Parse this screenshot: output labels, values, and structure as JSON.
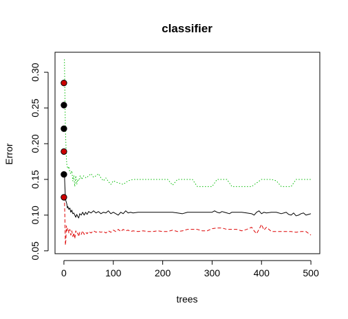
{
  "chart_data": {
    "type": "line",
    "title": "classifier",
    "xlabel": "trees",
    "ylabel": "Error",
    "xlim": [
      -18,
      518
    ],
    "ylim": [
      0.046,
      0.328
    ],
    "xticks": [
      0,
      100,
      200,
      300,
      400,
      500
    ],
    "yticks": [
      0.05,
      0.1,
      0.15,
      0.2,
      0.25,
      0.3
    ],
    "xtick_labels": [
      "0",
      "100",
      "200",
      "300",
      "400",
      "500"
    ],
    "ytick_labels": [
      "0.05",
      "0.10",
      "0.15",
      "0.20",
      "0.25",
      "0.30"
    ],
    "grid": false,
    "legend": "none",
    "series": [
      {
        "color": "#000000",
        "style": "solid",
        "x": [
          1,
          2,
          3,
          4,
          5,
          6,
          7,
          8,
          10,
          12,
          14,
          16,
          18,
          20,
          22,
          24,
          26,
          28,
          30,
          32,
          35,
          38,
          41,
          44,
          47,
          50,
          55,
          60,
          65,
          70,
          75,
          80,
          85,
          90,
          95,
          100,
          105,
          110,
          115,
          120,
          125,
          130,
          135,
          140,
          150,
          160,
          170,
          180,
          190,
          200,
          210,
          220,
          230,
          240,
          250,
          260,
          270,
          280,
          290,
          300,
          305,
          310,
          315,
          320,
          325,
          330,
          335,
          340,
          350,
          360,
          370,
          380,
          385,
          390,
          395,
          400,
          405,
          410,
          420,
          430,
          440,
          450,
          455,
          460,
          465,
          470,
          475,
          480,
          485,
          490,
          495,
          500
        ],
        "y": [
          0.158,
          0.14,
          0.125,
          0.12,
          0.118,
          0.115,
          0.11,
          0.112,
          0.108,
          0.11,
          0.104,
          0.107,
          0.102,
          0.103,
          0.1,
          0.097,
          0.101,
          0.098,
          0.096,
          0.102,
          0.1,
          0.104,
          0.1,
          0.104,
          0.101,
          0.105,
          0.103,
          0.106,
          0.103,
          0.105,
          0.102,
          0.104,
          0.103,
          0.106,
          0.102,
          0.104,
          0.102,
          0.1,
          0.104,
          0.102,
          0.106,
          0.103,
          0.104,
          0.103,
          0.104,
          0.104,
          0.104,
          0.104,
          0.104,
          0.104,
          0.104,
          0.104,
          0.103,
          0.102,
          0.104,
          0.104,
          0.104,
          0.104,
          0.104,
          0.104,
          0.106,
          0.104,
          0.103,
          0.105,
          0.104,
          0.103,
          0.102,
          0.104,
          0.104,
          0.104,
          0.103,
          0.102,
          0.1,
          0.104,
          0.106,
          0.102,
          0.104,
          0.103,
          0.104,
          0.104,
          0.102,
          0.104,
          0.101,
          0.1,
          0.103,
          0.099,
          0.1,
          0.102,
          0.103,
          0.1,
          0.101,
          0.102
        ]
      },
      {
        "color": "#dd0000",
        "style": "dashed",
        "x": [
          1,
          2,
          3,
          4,
          5,
          6,
          8,
          10,
          12,
          14,
          16,
          18,
          20,
          22,
          24,
          26,
          28,
          30,
          32,
          35,
          38,
          41,
          44,
          47,
          50,
          55,
          60,
          65,
          70,
          75,
          80,
          85,
          90,
          95,
          100,
          105,
          110,
          115,
          120,
          125,
          130,
          135,
          140,
          150,
          160,
          170,
          180,
          190,
          200,
          210,
          220,
          230,
          240,
          250,
          260,
          270,
          280,
          290,
          300,
          310,
          320,
          330,
          340,
          350,
          360,
          370,
          380,
          385,
          390,
          395,
          400,
          405,
          410,
          420,
          430,
          440,
          450,
          460,
          470,
          480,
          490,
          500
        ],
        "y": [
          0.125,
          0.095,
          0.058,
          0.065,
          0.085,
          0.078,
          0.082,
          0.075,
          0.08,
          0.072,
          0.078,
          0.07,
          0.075,
          0.067,
          0.078,
          0.074,
          0.075,
          0.07,
          0.076,
          0.073,
          0.078,
          0.073,
          0.076,
          0.074,
          0.077,
          0.075,
          0.078,
          0.076,
          0.077,
          0.076,
          0.077,
          0.075,
          0.078,
          0.076,
          0.079,
          0.077,
          0.08,
          0.077,
          0.08,
          0.078,
          0.079,
          0.077,
          0.078,
          0.077,
          0.078,
          0.077,
          0.077,
          0.078,
          0.077,
          0.077,
          0.079,
          0.077,
          0.078,
          0.08,
          0.08,
          0.08,
          0.078,
          0.078,
          0.081,
          0.082,
          0.082,
          0.08,
          0.08,
          0.08,
          0.078,
          0.08,
          0.083,
          0.078,
          0.074,
          0.08,
          0.087,
          0.079,
          0.083,
          0.077,
          0.077,
          0.077,
          0.077,
          0.077,
          0.076,
          0.077,
          0.077,
          0.072
        ]
      },
      {
        "color": "#00bb00",
        "style": "dotted",
        "x": [
          1,
          2,
          3,
          4,
          5,
          6,
          8,
          10,
          12,
          14,
          16,
          18,
          20,
          22,
          24,
          26,
          28,
          30,
          33,
          36,
          40,
          45,
          50,
          55,
          60,
          65,
          70,
          75,
          80,
          85,
          90,
          95,
          100,
          110,
          120,
          130,
          140,
          150,
          160,
          170,
          180,
          190,
          200,
          210,
          215,
          220,
          225,
          230,
          240,
          250,
          260,
          270,
          280,
          290,
          300,
          310,
          320,
          330,
          335,
          340,
          350,
          360,
          370,
          380,
          390,
          400,
          410,
          420,
          430,
          440,
          450,
          460,
          465,
          470,
          480,
          490,
          500
        ],
        "y": [
          0.318,
          0.27,
          0.22,
          0.2,
          0.18,
          0.17,
          0.165,
          0.168,
          0.16,
          0.158,
          0.162,
          0.148,
          0.155,
          0.14,
          0.155,
          0.143,
          0.15,
          0.148,
          0.155,
          0.15,
          0.155,
          0.152,
          0.155,
          0.158,
          0.153,
          0.155,
          0.158,
          0.152,
          0.148,
          0.152,
          0.147,
          0.143,
          0.148,
          0.145,
          0.143,
          0.148,
          0.15,
          0.15,
          0.15,
          0.15,
          0.15,
          0.15,
          0.15,
          0.15,
          0.146,
          0.142,
          0.146,
          0.15,
          0.15,
          0.15,
          0.15,
          0.14,
          0.14,
          0.14,
          0.14,
          0.15,
          0.15,
          0.15,
          0.145,
          0.14,
          0.14,
          0.14,
          0.14,
          0.14,
          0.145,
          0.15,
          0.15,
          0.15,
          0.148,
          0.14,
          0.14,
          0.14,
          0.145,
          0.15,
          0.15,
          0.15,
          0.15
        ]
      }
    ],
    "points": [
      {
        "x": 0,
        "y": 0.285,
        "fill": "#cc0000"
      },
      {
        "x": 0,
        "y": 0.254,
        "fill": "#000000"
      },
      {
        "x": 0,
        "y": 0.221,
        "fill": "#000000"
      },
      {
        "x": 0,
        "y": 0.189,
        "fill": "#cc0000"
      },
      {
        "x": 0,
        "y": 0.157,
        "fill": "#000000"
      },
      {
        "x": 0,
        "y": 0.125,
        "fill": "#cc0000"
      }
    ]
  }
}
